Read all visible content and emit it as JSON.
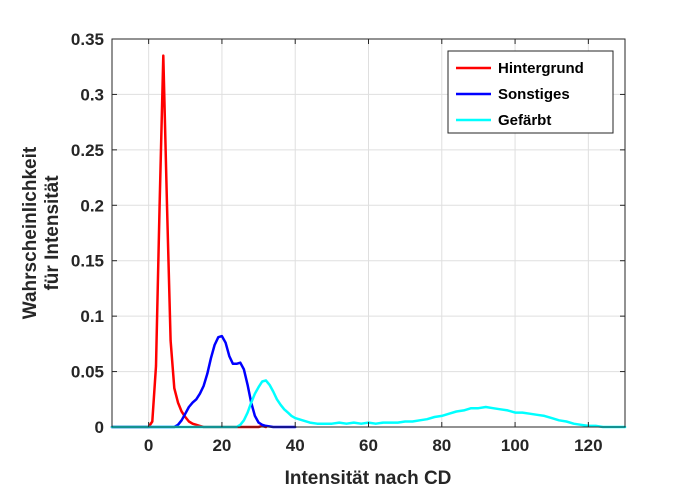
{
  "chart_data": {
    "type": "line",
    "xlabel": "Intensität nach CD",
    "ylabel_lines": [
      "Wahrscheinlichkeit",
      "für Intensität"
    ],
    "xlim": [
      -10,
      130
    ],
    "ylim": [
      0,
      0.35
    ],
    "xticks": [
      0,
      20,
      40,
      60,
      80,
      100,
      120
    ],
    "yticks": [
      0,
      0.05,
      0.1,
      0.15,
      0.2,
      0.25,
      0.3,
      0.35
    ],
    "ytick_labels": [
      "0",
      "0.05",
      "0.1",
      "0.15",
      "0.2",
      "0.25",
      "0.3",
      "0.35"
    ],
    "grid": true,
    "legend_position": "top-right",
    "series": [
      {
        "name": "Hintergrund",
        "color": "#ff0000",
        "x": [
          -10,
          0,
          1,
          2,
          3,
          4,
          5,
          6,
          7,
          8,
          9,
          10,
          11,
          12,
          13,
          14,
          15,
          20,
          25,
          30,
          31,
          32
        ],
        "y": [
          0,
          0,
          0.005,
          0.055,
          0.2,
          0.335,
          0.2,
          0.078,
          0.035,
          0.022,
          0.014,
          0.009,
          0.005,
          0.003,
          0.002,
          0.001,
          0,
          0,
          0,
          0,
          0.001,
          0
        ]
      },
      {
        "name": "Sonstiges",
        "color": "#0000ff",
        "x": [
          -10,
          7,
          8,
          9,
          10,
          11,
          12,
          13,
          14,
          15,
          16,
          17,
          18,
          19,
          20,
          21,
          22,
          23,
          24,
          25,
          26,
          27,
          28,
          29,
          30,
          31,
          32,
          34,
          40
        ],
        "y": [
          0,
          0,
          0.002,
          0.006,
          0.012,
          0.018,
          0.022,
          0.025,
          0.03,
          0.037,
          0.048,
          0.062,
          0.074,
          0.081,
          0.082,
          0.076,
          0.064,
          0.057,
          0.057,
          0.058,
          0.052,
          0.038,
          0.022,
          0.01,
          0.004,
          0.002,
          0.001,
          0,
          0
        ]
      },
      {
        "name": "Gefärbt",
        "color": "#00ffff",
        "x": [
          -10,
          20,
          24,
          25,
          26,
          27,
          28,
          29,
          30,
          31,
          32,
          33,
          34,
          35,
          36,
          37,
          38,
          39,
          40,
          42,
          44,
          46,
          48,
          50,
          52,
          54,
          56,
          58,
          60,
          62,
          64,
          66,
          68,
          70,
          72,
          74,
          76,
          78,
          80,
          82,
          84,
          86,
          88,
          90,
          92,
          94,
          96,
          98,
          100,
          102,
          104,
          106,
          108,
          110,
          112,
          114,
          116,
          118,
          120,
          122,
          124,
          130
        ],
        "y": [
          0,
          0,
          0,
          0.002,
          0.006,
          0.013,
          0.022,
          0.03,
          0.036,
          0.041,
          0.042,
          0.038,
          0.032,
          0.025,
          0.02,
          0.016,
          0.013,
          0.01,
          0.008,
          0.006,
          0.004,
          0.003,
          0.003,
          0.003,
          0.004,
          0.003,
          0.004,
          0.003,
          0.004,
          0.003,
          0.004,
          0.004,
          0.004,
          0.005,
          0.005,
          0.006,
          0.007,
          0.009,
          0.01,
          0.012,
          0.014,
          0.015,
          0.017,
          0.017,
          0.018,
          0.017,
          0.016,
          0.015,
          0.013,
          0.013,
          0.012,
          0.011,
          0.01,
          0.008,
          0.006,
          0.005,
          0.003,
          0.002,
          0.001,
          0.001,
          0,
          0
        ]
      }
    ]
  }
}
